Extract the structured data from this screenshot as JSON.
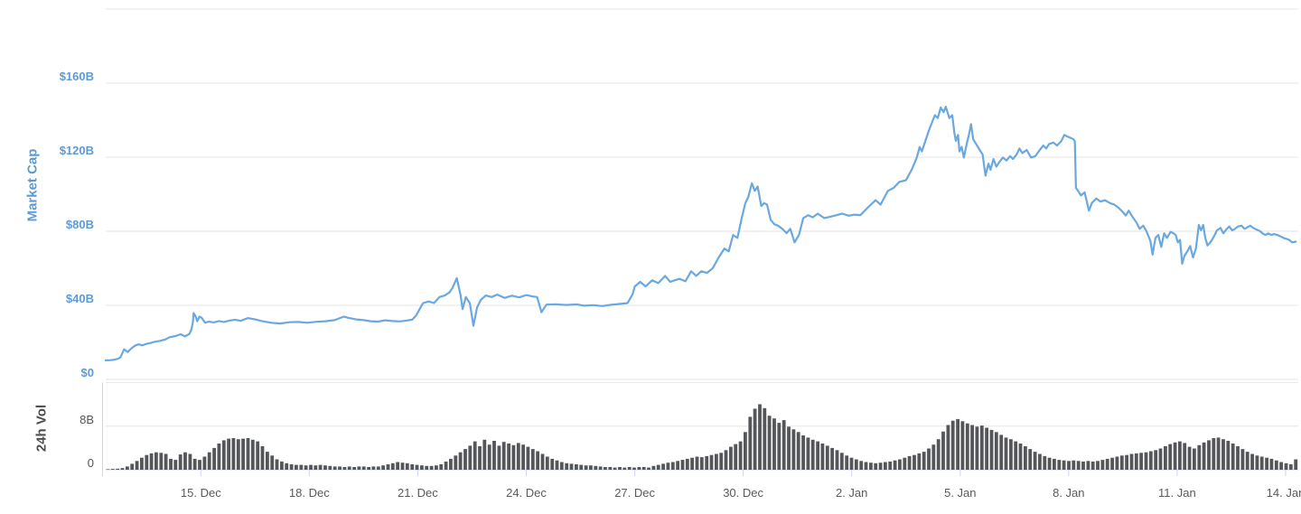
{
  "colors": {
    "line": "#6aa8e0",
    "bar": "#55565a",
    "grid": "#e6e6e6",
    "axis": "#ccd6eb",
    "y_label_blue": "#5d9bd5",
    "y_label_gray": "#555555",
    "x_label_gray": "#5a5a5a"
  },
  "xticks": [
    {
      "d": 0,
      "label": "15. Dec"
    },
    {
      "d": 3,
      "label": "18. Dec"
    },
    {
      "d": 6,
      "label": "21. Dec"
    },
    {
      "d": 9,
      "label": "24. Dec"
    },
    {
      "d": 12,
      "label": "27. Dec"
    },
    {
      "d": 15,
      "label": "30. Dec"
    },
    {
      "d": 18,
      "label": "2. Jan"
    },
    {
      "d": 21,
      "label": "5. Jan"
    },
    {
      "d": 24,
      "label": "8. Jan"
    },
    {
      "d": 27,
      "label": "11. Jan"
    },
    {
      "d": 30,
      "label": "14. Jan"
    }
  ],
  "chart_data": [
    {
      "type": "line",
      "name": "Market Cap",
      "unit": "USD billions",
      "color": "#6aa8e0",
      "x_unit": "days since 15. Dec",
      "x_domain": [
        -2.63,
        30.35
      ],
      "y_domain": [
        0,
        200
      ],
      "grid": true,
      "legend": "none",
      "yticks": [
        {
          "v": 0,
          "label": "$0"
        },
        {
          "v": 40,
          "label": "$40B"
        },
        {
          "v": 80,
          "label": "$80B"
        },
        {
          "v": 120,
          "label": "$120B"
        },
        {
          "v": 160,
          "label": "$160B"
        },
        {
          "v": 200,
          "label": ""
        }
      ],
      "points": [
        [
          -2.63,
          10.3
        ],
        [
          -2.5,
          10.4
        ],
        [
          -2.38,
          10.7
        ],
        [
          -2.28,
          11.2
        ],
        [
          -2.22,
          12.0
        ],
        [
          -2.12,
          16.3
        ],
        [
          -2.02,
          14.8
        ],
        [
          -1.92,
          16.8
        ],
        [
          -1.82,
          18.2
        ],
        [
          -1.72,
          19.0
        ],
        [
          -1.62,
          18.4
        ],
        [
          -1.5,
          19.2
        ],
        [
          -1.4,
          19.6
        ],
        [
          -1.28,
          20.3
        ],
        [
          -1.14,
          20.8
        ],
        [
          -1.0,
          21.4
        ],
        [
          -0.86,
          22.8
        ],
        [
          -0.7,
          23.4
        ],
        [
          -0.56,
          24.4
        ],
        [
          -0.44,
          23.2
        ],
        [
          -0.32,
          24.5
        ],
        [
          -0.26,
          27.0
        ],
        [
          -0.22,
          31.0
        ],
        [
          -0.2,
          35.8
        ],
        [
          -0.14,
          33.8
        ],
        [
          -0.1,
          31.4
        ],
        [
          -0.04,
          33.9
        ],
        [
          0.02,
          33.3
        ],
        [
          0.12,
          30.6
        ],
        [
          0.22,
          31.2
        ],
        [
          0.36,
          30.8
        ],
        [
          0.5,
          31.5
        ],
        [
          0.64,
          31.0
        ],
        [
          0.8,
          31.8
        ],
        [
          0.95,
          32.2
        ],
        [
          1.1,
          31.6
        ],
        [
          1.3,
          33.1
        ],
        [
          1.5,
          32.4
        ],
        [
          1.7,
          31.4
        ],
        [
          1.95,
          30.6
        ],
        [
          2.2,
          30.2
        ],
        [
          2.45,
          30.9
        ],
        [
          2.7,
          31.0
        ],
        [
          2.95,
          30.6
        ],
        [
          3.2,
          31.1
        ],
        [
          3.45,
          31.4
        ],
        [
          3.7,
          32.0
        ],
        [
          3.95,
          33.9
        ],
        [
          4.1,
          33.1
        ],
        [
          4.3,
          32.4
        ],
        [
          4.5,
          32.0
        ],
        [
          4.7,
          31.4
        ],
        [
          4.9,
          31.2
        ],
        [
          5.1,
          31.9
        ],
        [
          5.3,
          31.5
        ],
        [
          5.5,
          31.3
        ],
        [
          5.7,
          31.8
        ],
        [
          5.85,
          32.3
        ],
        [
          5.96,
          34.7
        ],
        [
          6.08,
          39.0
        ],
        [
          6.15,
          41.2
        ],
        [
          6.3,
          42.1
        ],
        [
          6.45,
          41.2
        ],
        [
          6.6,
          44.5
        ],
        [
          6.75,
          45.3
        ],
        [
          6.88,
          47.0
        ],
        [
          6.96,
          49.4
        ],
        [
          7.08,
          54.7
        ],
        [
          7.18,
          46.0
        ],
        [
          7.24,
          38.0
        ],
        [
          7.33,
          44.5
        ],
        [
          7.44,
          41.2
        ],
        [
          7.54,
          29.0
        ],
        [
          7.64,
          38.8
        ],
        [
          7.74,
          42.9
        ],
        [
          7.88,
          45.3
        ],
        [
          8.04,
          44.5
        ],
        [
          8.2,
          45.8
        ],
        [
          8.4,
          44.0
        ],
        [
          8.6,
          45.2
        ],
        [
          8.8,
          44.3
        ],
        [
          9.0,
          45.5
        ],
        [
          9.18,
          44.8
        ],
        [
          9.3,
          44.5
        ],
        [
          9.42,
          36.3
        ],
        [
          9.56,
          40.4
        ],
        [
          9.8,
          40.6
        ],
        [
          10.1,
          40.2
        ],
        [
          10.4,
          40.5
        ],
        [
          10.6,
          39.8
        ],
        [
          10.85,
          40.1
        ],
        [
          11.1,
          39.6
        ],
        [
          11.35,
          40.3
        ],
        [
          11.6,
          40.8
        ],
        [
          11.8,
          41.2
        ],
        [
          11.94,
          46.0
        ],
        [
          12.0,
          50.2
        ],
        [
          12.15,
          52.7
        ],
        [
          12.3,
          50.2
        ],
        [
          12.48,
          53.5
        ],
        [
          12.65,
          52.0
        ],
        [
          12.84,
          55.9
        ],
        [
          12.98,
          52.7
        ],
        [
          13.1,
          53.5
        ],
        [
          13.24,
          54.3
        ],
        [
          13.4,
          53.0
        ],
        [
          13.56,
          58.4
        ],
        [
          13.7,
          55.9
        ],
        [
          13.84,
          58.4
        ],
        [
          14.0,
          57.5
        ],
        [
          14.16,
          60.1
        ],
        [
          14.32,
          65.8
        ],
        [
          14.48,
          70.7
        ],
        [
          14.6,
          69.1
        ],
        [
          14.72,
          78.0
        ],
        [
          14.84,
          76.4
        ],
        [
          14.96,
          87.1
        ],
        [
          15.06,
          95.2
        ],
        [
          15.14,
          98.5
        ],
        [
          15.24,
          105.9
        ],
        [
          15.32,
          101.8
        ],
        [
          15.4,
          104.2
        ],
        [
          15.5,
          93.6
        ],
        [
          15.58,
          95.2
        ],
        [
          15.66,
          94.4
        ],
        [
          15.76,
          86.2
        ],
        [
          15.86,
          83.8
        ],
        [
          15.96,
          83.0
        ],
        [
          16.08,
          81.3
        ],
        [
          16.2,
          79.0
        ],
        [
          16.3,
          81.3
        ],
        [
          16.42,
          74.0
        ],
        [
          16.54,
          78.0
        ],
        [
          16.66,
          87.1
        ],
        [
          16.8,
          88.7
        ],
        [
          16.92,
          87.5
        ],
        [
          17.06,
          89.5
        ],
        [
          17.24,
          87.1
        ],
        [
          17.42,
          87.9
        ],
        [
          17.58,
          88.7
        ],
        [
          17.74,
          89.5
        ],
        [
          17.92,
          88.4
        ],
        [
          18.08,
          89.0
        ],
        [
          18.24,
          88.7
        ],
        [
          18.44,
          92.7
        ],
        [
          18.66,
          96.8
        ],
        [
          18.8,
          94.4
        ],
        [
          19.0,
          101.8
        ],
        [
          19.16,
          103.4
        ],
        [
          19.32,
          106.7
        ],
        [
          19.5,
          107.5
        ],
        [
          19.66,
          113.2
        ],
        [
          19.8,
          119.8
        ],
        [
          19.88,
          125.5
        ],
        [
          19.94,
          123.1
        ],
        [
          20.04,
          128.8
        ],
        [
          20.12,
          133.7
        ],
        [
          20.2,
          137.8
        ],
        [
          20.3,
          142.7
        ],
        [
          20.38,
          141.1
        ],
        [
          20.46,
          146.8
        ],
        [
          20.54,
          144.3
        ],
        [
          20.6,
          147.2
        ],
        [
          20.7,
          141.1
        ],
        [
          20.78,
          142.7
        ],
        [
          20.84,
          132.9
        ],
        [
          20.88,
          128.8
        ],
        [
          20.94,
          132.0
        ],
        [
          20.98,
          123.1
        ],
        [
          21.04,
          125.5
        ],
        [
          21.1,
          119.8
        ],
        [
          21.18,
          127.1
        ],
        [
          21.24,
          132.0
        ],
        [
          21.3,
          137.8
        ],
        [
          21.36,
          129.6
        ],
        [
          21.44,
          127.1
        ],
        [
          21.54,
          123.9
        ],
        [
          21.62,
          121.4
        ],
        [
          21.7,
          110.0
        ],
        [
          21.78,
          116.5
        ],
        [
          21.84,
          113.2
        ],
        [
          21.92,
          119.0
        ],
        [
          22.0,
          114.9
        ],
        [
          22.08,
          117.3
        ],
        [
          22.18,
          119.8
        ],
        [
          22.28,
          118.2
        ],
        [
          22.38,
          120.6
        ],
        [
          22.46,
          119.0
        ],
        [
          22.56,
          121.4
        ],
        [
          22.64,
          124.7
        ],
        [
          22.72,
          122.2
        ],
        [
          22.84,
          123.9
        ],
        [
          22.96,
          119.8
        ],
        [
          23.08,
          120.6
        ],
        [
          23.2,
          123.9
        ],
        [
          23.3,
          126.3
        ],
        [
          23.38,
          124.7
        ],
        [
          23.46,
          127.1
        ],
        [
          23.58,
          127.9
        ],
        [
          23.68,
          126.3
        ],
        [
          23.8,
          128.8
        ],
        [
          23.88,
          132.0
        ],
        [
          23.96,
          131.2
        ],
        [
          24.06,
          130.4
        ],
        [
          24.14,
          129.6
        ],
        [
          24.17,
          128.4
        ],
        [
          24.2,
          103.4
        ],
        [
          24.26,
          101.8
        ],
        [
          24.34,
          99.3
        ],
        [
          24.44,
          101.0
        ],
        [
          24.56,
          91.1
        ],
        [
          24.64,
          95.2
        ],
        [
          24.76,
          97.7
        ],
        [
          24.88,
          96.0
        ],
        [
          25.0,
          96.8
        ],
        [
          25.14,
          95.2
        ],
        [
          25.26,
          94.4
        ],
        [
          25.38,
          92.7
        ],
        [
          25.5,
          90.3
        ],
        [
          25.58,
          88.5
        ],
        [
          25.66,
          91.1
        ],
        [
          25.76,
          87.9
        ],
        [
          25.88,
          84.6
        ],
        [
          25.96,
          81.3
        ],
        [
          26.06,
          83.0
        ],
        [
          26.14,
          80.5
        ],
        [
          26.26,
          74.8
        ],
        [
          26.32,
          67.4
        ],
        [
          26.4,
          76.4
        ],
        [
          26.48,
          78.0
        ],
        [
          26.56,
          71.5
        ],
        [
          26.64,
          78.9
        ],
        [
          26.72,
          76.4
        ],
        [
          26.82,
          79.7
        ],
        [
          26.9,
          78.9
        ],
        [
          26.96,
          78.0
        ],
        [
          27.02,
          74.0
        ],
        [
          27.08,
          75.3
        ],
        [
          27.14,
          62.5
        ],
        [
          27.2,
          66.6
        ],
        [
          27.28,
          69.1
        ],
        [
          27.36,
          72.0
        ],
        [
          27.44,
          65.8
        ],
        [
          27.52,
          70.7
        ],
        [
          27.6,
          83.4
        ],
        [
          27.66,
          80.5
        ],
        [
          27.72,
          83.4
        ],
        [
          27.78,
          76.4
        ],
        [
          27.84,
          72.3
        ],
        [
          27.92,
          74.0
        ],
        [
          28.02,
          77.2
        ],
        [
          28.1,
          80.5
        ],
        [
          28.2,
          81.8
        ],
        [
          28.28,
          78.9
        ],
        [
          28.36,
          81.0
        ],
        [
          28.44,
          82.6
        ],
        [
          28.52,
          80.5
        ],
        [
          28.6,
          81.3
        ],
        [
          28.68,
          82.6
        ],
        [
          28.78,
          83.0
        ],
        [
          28.86,
          81.3
        ],
        [
          28.94,
          82.1
        ],
        [
          29.02,
          83.0
        ],
        [
          29.1,
          81.8
        ],
        [
          29.18,
          81.0
        ],
        [
          29.28,
          80.2
        ],
        [
          29.36,
          78.9
        ],
        [
          29.44,
          78.0
        ],
        [
          29.52,
          78.9
        ],
        [
          29.6,
          78.0
        ],
        [
          29.68,
          78.5
        ],
        [
          29.78,
          77.9
        ],
        [
          29.86,
          77.2
        ],
        [
          29.94,
          76.4
        ],
        [
          30.02,
          75.9
        ],
        [
          30.1,
          75.3
        ],
        [
          30.18,
          74.0
        ],
        [
          30.28,
          74.4
        ]
      ]
    },
    {
      "type": "bar",
      "name": "24h Vol",
      "unit": "USD billions",
      "color": "#55565a",
      "x_unit": "days since 15. Dec",
      "x_domain": [
        -2.63,
        30.35
      ],
      "y_domain": [
        0,
        16
      ],
      "grid": true,
      "legend": "none",
      "yticks": [
        {
          "v": 0,
          "label": "0"
        },
        {
          "v": 8,
          "label": "8B"
        },
        {
          "v": 16,
          "label": ""
        }
      ],
      "values": [
        0.1,
        0.15,
        0.2,
        0.3,
        0.6,
        1.1,
        1.6,
        2.2,
        2.7,
        3.0,
        3.2,
        3.1,
        2.9,
        2.0,
        1.8,
        2.8,
        3.2,
        2.9,
        2.0,
        1.8,
        2.4,
        3.2,
        4.0,
        4.8,
        5.4,
        5.7,
        5.8,
        5.6,
        5.7,
        5.8,
        5.5,
        5.2,
        4.3,
        3.3,
        2.6,
        1.9,
        1.5,
        1.2,
        1.0,
        0.9,
        0.9,
        0.8,
        0.9,
        0.8,
        0.9,
        0.8,
        0.7,
        0.6,
        0.6,
        0.5,
        0.6,
        0.5,
        0.6,
        0.6,
        0.5,
        0.6,
        0.6,
        0.8,
        1.0,
        1.2,
        1.4,
        1.3,
        1.2,
        1.0,
        0.9,
        0.8,
        0.7,
        0.7,
        0.8,
        1.0,
        1.5,
        2.0,
        2.6,
        3.2,
        3.8,
        4.4,
        5.2,
        4.3,
        5.5,
        4.6,
        5.3,
        4.4,
        5.1,
        4.8,
        4.5,
        4.9,
        4.6,
        4.2,
        3.8,
        3.4,
        2.9,
        2.4,
        2.0,
        1.7,
        1.4,
        1.2,
        1.1,
        1.0,
        0.9,
        0.8,
        0.8,
        0.7,
        0.6,
        0.5,
        0.5,
        0.4,
        0.5,
        0.4,
        0.5,
        0.4,
        0.5,
        0.5,
        0.4,
        0.7,
        0.9,
        1.1,
        1.3,
        1.4,
        1.6,
        1.8,
        2.0,
        2.2,
        2.4,
        2.3,
        2.5,
        2.7,
        2.9,
        3.1,
        3.6,
        4.2,
        4.7,
        5.2,
        6.9,
        9.7,
        11.2,
        12.0,
        11.3,
        9.9,
        9.4,
        8.6,
        9.1,
        7.9,
        7.4,
        6.9,
        6.3,
        5.9,
        5.5,
        5.2,
        4.8,
        4.4,
        4.0,
        3.6,
        3.1,
        2.6,
        2.2,
        1.9,
        1.6,
        1.4,
        1.3,
        1.2,
        1.3,
        1.4,
        1.5,
        1.7,
        1.9,
        2.2,
        2.5,
        2.7,
        3.0,
        3.3,
        3.9,
        4.6,
        5.6,
        7.0,
        8.2,
        9.0,
        9.3,
        8.9,
        8.5,
        8.2,
        7.9,
        8.1,
        7.7,
        7.3,
        6.9,
        6.4,
        5.9,
        5.6,
        5.2,
        4.8,
        4.3,
        3.8,
        3.3,
        2.9,
        2.5,
        2.2,
        2.0,
        1.8,
        1.7,
        1.6,
        1.7,
        1.6,
        1.5,
        1.6,
        1.5,
        1.6,
        1.8,
        2.0,
        2.2,
        2.4,
        2.6,
        2.7,
        2.9,
        3.0,
        3.1,
        3.2,
        3.4,
        3.6,
        3.9,
        4.3,
        4.7,
        5.0,
        5.2,
        4.9,
        4.2,
        3.9,
        4.5,
        5.0,
        5.4,
        5.8,
        5.9,
        5.6,
        5.3,
        4.8,
        4.3,
        3.8,
        3.3,
        2.9,
        2.6,
        2.4,
        2.2,
        2.0,
        1.7,
        1.4,
        1.2,
        1.0,
        1.9
      ]
    }
  ]
}
